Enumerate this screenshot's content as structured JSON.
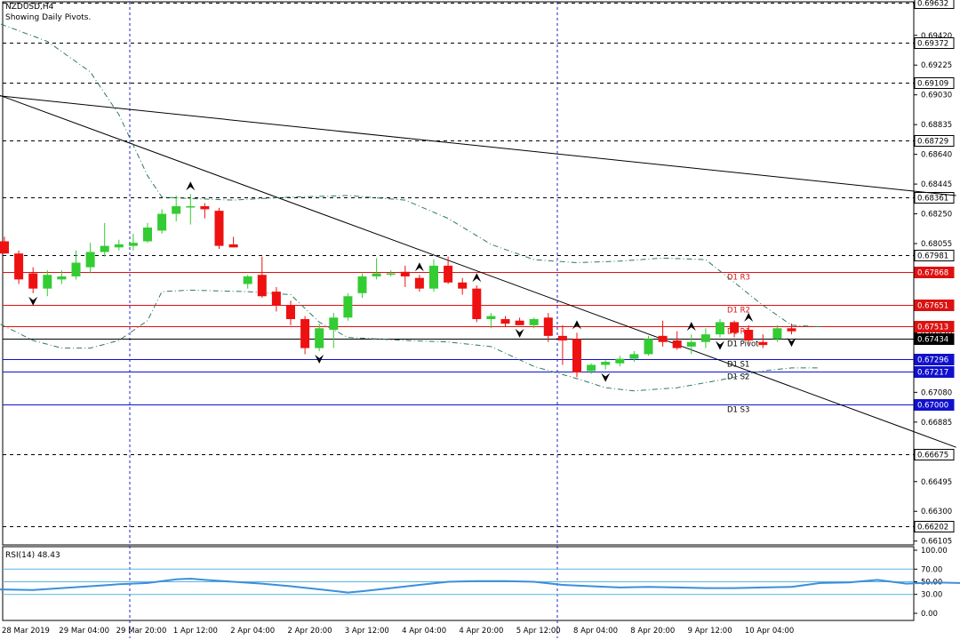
{
  "header": {
    "symbol_label": "NZDUSD,H4",
    "subtitle": "Showing Daily Pivots."
  },
  "rsi_label": "RSI(14) 48.43",
  "colors": {
    "bull": "#33cc33",
    "bear": "#ee1111",
    "resistance": "#dd1111",
    "support": "#1111cc",
    "pivot": "#000000",
    "bands": "#2f7a5e",
    "rsi_line": "#3c8fdb",
    "rsi_levels": "#5ab4e0",
    "vgrid": "#2222cc"
  },
  "chart_data": [
    {
      "type": "candlestick",
      "symbol": "NZDUSD",
      "timeframe": "H4",
      "ylim": [
        0.6608,
        0.6964
      ],
      "price_axis_ticks": [
        "0.69420",
        "0.69225",
        "0.69030",
        "0.68835",
        "0.68640",
        "0.68445",
        "0.68250",
        "0.68055",
        "0.67860",
        "0.67665",
        "0.67470",
        "0.67275",
        "0.67080",
        "0.66885",
        "0.66690",
        "0.66495",
        "0.66300",
        "0.66105"
      ],
      "x_tick_labels": [
        "28 Mar 2019",
        "29 Mar 04:00",
        "29 Mar 20:00",
        "1 Apr 12:00",
        "2 Apr 04:00",
        "2 Apr 20:00",
        "3 Apr 12:00",
        "4 Apr 04:00",
        "4 Apr 20:00",
        "5 Apr 12:00",
        "8 Apr 04:00",
        "8 Apr 20:00",
        "9 Apr 12:00",
        "10 Apr 04:00"
      ],
      "candles": [
        {
          "o": 0.6807,
          "h": 0.681,
          "l": 0.6799,
          "c": 0.6799
        },
        {
          "o": 0.6799,
          "h": 0.6801,
          "l": 0.6779,
          "c": 0.6782
        },
        {
          "o": 0.6786,
          "h": 0.679,
          "l": 0.6773,
          "c": 0.6776
        },
        {
          "o": 0.6776,
          "h": 0.6788,
          "l": 0.6771,
          "c": 0.6785
        },
        {
          "o": 0.6782,
          "h": 0.6788,
          "l": 0.6779,
          "c": 0.6784
        },
        {
          "o": 0.6784,
          "h": 0.6801,
          "l": 0.6782,
          "c": 0.6793
        },
        {
          "o": 0.679,
          "h": 0.6806,
          "l": 0.6786,
          "c": 0.68
        },
        {
          "o": 0.68,
          "h": 0.6819,
          "l": 0.6797,
          "c": 0.6804
        },
        {
          "o": 0.6803,
          "h": 0.6808,
          "l": 0.6801,
          "c": 0.6805
        },
        {
          "o": 0.6804,
          "h": 0.6812,
          "l": 0.6801,
          "c": 0.6806
        },
        {
          "o": 0.6807,
          "h": 0.6819,
          "l": 0.6806,
          "c": 0.6816
        },
        {
          "o": 0.6814,
          "h": 0.6828,
          "l": 0.6812,
          "c": 0.6825
        },
        {
          "o": 0.6825,
          "h": 0.6837,
          "l": 0.682,
          "c": 0.683
        },
        {
          "o": 0.683,
          "h": 0.6838,
          "l": 0.6818,
          "c": 0.683
        },
        {
          "o": 0.683,
          "h": 0.6832,
          "l": 0.6822,
          "c": 0.6828
        },
        {
          "o": 0.6827,
          "h": 0.6829,
          "l": 0.6802,
          "c": 0.6804
        },
        {
          "o": 0.6805,
          "h": 0.681,
          "l": 0.6803,
          "c": 0.6803
        },
        {
          "o": 0.6779,
          "h": 0.6785,
          "l": 0.6776,
          "c": 0.6784
        },
        {
          "o": 0.6785,
          "h": 0.6797,
          "l": 0.677,
          "c": 0.6771
        },
        {
          "o": 0.6774,
          "h": 0.6777,
          "l": 0.6761,
          "c": 0.6765
        },
        {
          "o": 0.6765,
          "h": 0.6768,
          "l": 0.6752,
          "c": 0.6756
        },
        {
          "o": 0.6756,
          "h": 0.6758,
          "l": 0.6733,
          "c": 0.6737
        },
        {
          "o": 0.6737,
          "h": 0.6753,
          "l": 0.6735,
          "c": 0.675
        },
        {
          "o": 0.6749,
          "h": 0.676,
          "l": 0.6737,
          "c": 0.6757
        },
        {
          "o": 0.6757,
          "h": 0.6773,
          "l": 0.6755,
          "c": 0.6771
        },
        {
          "o": 0.6773,
          "h": 0.6786,
          "l": 0.677,
          "c": 0.6784
        },
        {
          "o": 0.6784,
          "h": 0.6796,
          "l": 0.6782,
          "c": 0.6786
        },
        {
          "o": 0.6786,
          "h": 0.6788,
          "l": 0.6784,
          "c": 0.6786
        },
        {
          "o": 0.6787,
          "h": 0.6791,
          "l": 0.6777,
          "c": 0.6784
        },
        {
          "o": 0.6783,
          "h": 0.6785,
          "l": 0.6774,
          "c": 0.6776
        },
        {
          "o": 0.6776,
          "h": 0.6795,
          "l": 0.6774,
          "c": 0.6791
        },
        {
          "o": 0.6791,
          "h": 0.6797,
          "l": 0.6779,
          "c": 0.678
        },
        {
          "o": 0.678,
          "h": 0.6783,
          "l": 0.6772,
          "c": 0.6776
        },
        {
          "o": 0.6776,
          "h": 0.6778,
          "l": 0.6754,
          "c": 0.6756
        },
        {
          "o": 0.6756,
          "h": 0.676,
          "l": 0.675,
          "c": 0.6758
        },
        {
          "o": 0.6756,
          "h": 0.6758,
          "l": 0.6751,
          "c": 0.6753
        },
        {
          "o": 0.6755,
          "h": 0.6757,
          "l": 0.6752,
          "c": 0.6752
        },
        {
          "o": 0.6752,
          "h": 0.6757,
          "l": 0.675,
          "c": 0.6756
        },
        {
          "o": 0.6757,
          "h": 0.676,
          "l": 0.6741,
          "c": 0.6745
        },
        {
          "o": 0.6745,
          "h": 0.6752,
          "l": 0.6726,
          "c": 0.6742
        },
        {
          "o": 0.6743,
          "h": 0.6747,
          "l": 0.6718,
          "c": 0.6721
        },
        {
          "o": 0.6722,
          "h": 0.6727,
          "l": 0.672,
          "c": 0.6726
        },
        {
          "o": 0.6726,
          "h": 0.6729,
          "l": 0.6723,
          "c": 0.6728
        },
        {
          "o": 0.6727,
          "h": 0.6732,
          "l": 0.6725,
          "c": 0.673
        },
        {
          "o": 0.673,
          "h": 0.6735,
          "l": 0.6728,
          "c": 0.6733
        },
        {
          "o": 0.6733,
          "h": 0.6745,
          "l": 0.6732,
          "c": 0.6743
        },
        {
          "o": 0.6745,
          "h": 0.6755,
          "l": 0.6738,
          "c": 0.6741
        },
        {
          "o": 0.6742,
          "h": 0.6748,
          "l": 0.6736,
          "c": 0.6737
        },
        {
          "o": 0.6738,
          "h": 0.6746,
          "l": 0.6733,
          "c": 0.6741
        },
        {
          "o": 0.6741,
          "h": 0.675,
          "l": 0.6737,
          "c": 0.6746
        },
        {
          "o": 0.6746,
          "h": 0.6756,
          "l": 0.6744,
          "c": 0.6754
        },
        {
          "o": 0.6754,
          "h": 0.6755,
          "l": 0.6744,
          "c": 0.6747
        },
        {
          "o": 0.6749,
          "h": 0.6752,
          "l": 0.674,
          "c": 0.6742
        },
        {
          "o": 0.6741,
          "h": 0.6746,
          "l": 0.6737,
          "c": 0.6739
        },
        {
          "o": 0.6743,
          "h": 0.6752,
          "l": 0.6741,
          "c": 0.675
        },
        {
          "o": 0.675,
          "h": 0.6753,
          "l": 0.6746,
          "c": 0.6748
        }
      ],
      "horizontal_levels": [
        {
          "price": 0.69632,
          "label": "0.69632",
          "kind": "grid"
        },
        {
          "price": 0.69372,
          "label": "0.69372",
          "kind": "grid"
        },
        {
          "price": 0.69109,
          "label": "0.69109",
          "kind": "grid"
        },
        {
          "price": 0.68729,
          "label": "0.68729",
          "kind": "grid"
        },
        {
          "price": 0.68361,
          "label": "0.68361",
          "kind": "grid"
        },
        {
          "price": 0.67981,
          "label": "0.67981",
          "kind": "grid"
        },
        {
          "price": 0.66675,
          "label": "0.66675",
          "kind": "grid"
        },
        {
          "price": 0.66202,
          "label": "0.66202",
          "kind": "grid"
        },
        {
          "price": 0.67868,
          "label": "0.67868",
          "kind": "resistance",
          "name": "D1 R3"
        },
        {
          "price": 0.67651,
          "label": "0.67651",
          "kind": "resistance",
          "name": "D1 R2"
        },
        {
          "price": 0.67513,
          "label": "0.67513",
          "kind": "resistance",
          "name": "D1 R1"
        },
        {
          "price": 0.67434,
          "label": "0.67434",
          "kind": "pivot",
          "name": "D1 Pivot"
        },
        {
          "price": 0.67296,
          "label": "0.67296",
          "kind": "support",
          "name": "D1 S1"
        },
        {
          "price": 0.67217,
          "label": "0.67217",
          "kind": "support",
          "name": "D1 S2"
        },
        {
          "price": 0.67,
          "label": "0.67000",
          "kind": "support",
          "name": "D1 S3"
        }
      ],
      "trend_lines": [
        {
          "x1": -1,
          "y1": 0.6905,
          "x2": 66.5,
          "y2": 0.6672
        },
        {
          "x1": -1,
          "y1": 0.6903,
          "x2": 66.5,
          "y2": 0.6837
        }
      ],
      "band_upper": [
        [
          -1,
          0.6952
        ],
        [
          3,
          0.6938
        ],
        [
          6,
          0.6918
        ],
        [
          8,
          0.689
        ],
        [
          10,
          0.685
        ],
        [
          11,
          0.6836
        ],
        [
          13,
          0.6835
        ],
        [
          16,
          0.6834
        ],
        [
          20,
          0.6836
        ],
        [
          24,
          0.6837
        ],
        [
          28,
          0.6834
        ],
        [
          31,
          0.6822
        ],
        [
          34,
          0.6805
        ],
        [
          37,
          0.6795
        ],
        [
          40,
          0.6793
        ],
        [
          43,
          0.6794
        ],
        [
          46,
          0.6796
        ],
        [
          49,
          0.6795
        ],
        [
          51,
          0.678
        ],
        [
          53,
          0.6765
        ],
        [
          55,
          0.6752
        ],
        [
          57,
          0.6751
        ]
      ],
      "band_lower": [
        [
          -1,
          0.6756
        ],
        [
          2,
          0.6742
        ],
        [
          4,
          0.6737
        ],
        [
          6,
          0.6737
        ],
        [
          8,
          0.6742
        ],
        [
          10,
          0.6755
        ],
        [
          11,
          0.6774
        ],
        [
          13,
          0.6775
        ],
        [
          17,
          0.6774
        ],
        [
          20,
          0.6772
        ],
        [
          22,
          0.6754
        ],
        [
          24,
          0.6744
        ],
        [
          28,
          0.6742
        ],
        [
          31,
          0.6741
        ],
        [
          34,
          0.6738
        ],
        [
          37,
          0.6725
        ],
        [
          40,
          0.6717
        ],
        [
          42,
          0.6711
        ],
        [
          44,
          0.6709
        ],
        [
          47,
          0.6711
        ],
        [
          50,
          0.6716
        ],
        [
          53,
          0.6722
        ],
        [
          55,
          0.6724
        ],
        [
          57,
          0.6724
        ]
      ],
      "fractals": [
        {
          "i": 13,
          "dir": "up"
        },
        {
          "i": 29,
          "dir": "up"
        },
        {
          "i": 33,
          "dir": "up"
        },
        {
          "i": 40,
          "dir": "up"
        },
        {
          "i": 48,
          "dir": "up"
        },
        {
          "i": 52,
          "dir": "up"
        },
        {
          "i": 2,
          "dir": "down"
        },
        {
          "i": 22,
          "dir": "down"
        },
        {
          "i": 36,
          "dir": "down"
        },
        {
          "i": 42,
          "dir": "down"
        },
        {
          "i": 50,
          "dir": "down"
        },
        {
          "i": 55,
          "dir": "down"
        }
      ]
    },
    {
      "type": "line",
      "name": "RSI(14)",
      "current": 48.43,
      "ylim": [
        0,
        100
      ],
      "levels": [
        30,
        50,
        70
      ],
      "axis_ticks": [
        "100.00",
        "70.00",
        "50.00",
        "30.00",
        "0.00"
      ],
      "values": [
        [
          -1,
          38
        ],
        [
          2,
          37
        ],
        [
          4,
          40
        ],
        [
          6,
          43
        ],
        [
          8,
          46
        ],
        [
          10,
          48
        ],
        [
          12,
          54
        ],
        [
          13,
          55
        ],
        [
          14,
          53
        ],
        [
          16,
          50
        ],
        [
          18,
          47
        ],
        [
          20,
          43
        ],
        [
          22,
          38
        ],
        [
          24,
          33
        ],
        [
          25,
          35
        ],
        [
          27,
          40
        ],
        [
          29,
          45
        ],
        [
          31,
          50
        ],
        [
          33,
          51
        ],
        [
          35,
          51
        ],
        [
          37,
          50
        ],
        [
          39,
          45
        ],
        [
          41,
          43
        ],
        [
          43,
          41
        ],
        [
          45,
          42
        ],
        [
          47,
          41
        ],
        [
          49,
          40
        ],
        [
          51,
          40
        ],
        [
          53,
          41
        ],
        [
          55,
          42
        ],
        [
          57,
          48
        ],
        [
          59,
          49
        ],
        [
          61,
          53
        ],
        [
          63,
          47
        ],
        [
          65,
          49
        ],
        [
          67,
          48
        ],
        [
          69,
          49
        ],
        [
          71,
          48
        ]
      ]
    }
  ]
}
